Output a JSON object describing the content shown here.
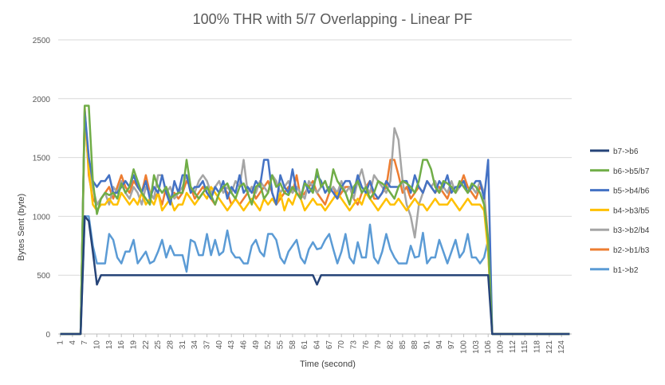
{
  "chart_data": {
    "type": "line",
    "title": "100% THR with 5/7 Overlapping - Linear PF",
    "xlabel": "Time (second)",
    "ylabel": "Bytes Sent (byte)",
    "ylim": [
      0,
      2500
    ],
    "yticks": [
      "0",
      "500",
      "1000",
      "1500",
      "2000",
      "2500"
    ],
    "x_tick_labels": [
      "1",
      "4",
      "7",
      "10",
      "13",
      "16",
      "19",
      "22",
      "25",
      "28",
      "31",
      "34",
      "37",
      "40",
      "43",
      "46",
      "49",
      "52",
      "55",
      "58",
      "61",
      "64",
      "67",
      "70",
      "73",
      "76",
      "79",
      "82",
      "85",
      "88",
      "91",
      "94",
      "97",
      "100",
      "103",
      "106",
      "109",
      "112",
      "115",
      "118",
      "121",
      "124"
    ],
    "x": [
      1,
      2,
      3,
      4,
      5,
      6,
      7,
      8,
      9,
      10,
      11,
      12,
      13,
      14,
      15,
      16,
      17,
      18,
      19,
      20,
      21,
      22,
      23,
      24,
      25,
      26,
      27,
      28,
      29,
      30,
      31,
      32,
      33,
      34,
      35,
      36,
      37,
      38,
      39,
      40,
      41,
      42,
      43,
      44,
      45,
      46,
      47,
      48,
      49,
      50,
      51,
      52,
      53,
      54,
      55,
      56,
      57,
      58,
      59,
      60,
      61,
      62,
      63,
      64,
      65,
      66,
      67,
      68,
      69,
      70,
      71,
      72,
      73,
      74,
      75,
      76,
      77,
      78,
      79,
      80,
      81,
      82,
      83,
      84,
      85,
      86,
      87,
      88,
      89,
      90,
      91,
      92,
      93,
      94,
      95,
      96,
      97,
      98,
      99,
      100,
      101,
      102,
      103,
      104,
      105,
      106,
      107,
      108,
      109,
      110,
      111,
      112,
      113,
      114,
      115,
      116,
      117,
      118,
      119,
      120,
      121,
      122,
      123,
      124,
      125,
      126
    ],
    "grid": true,
    "legend_position": "right",
    "series": [
      {
        "name": "b7->b6",
        "color": "#264478",
        "values": [
          0,
          0,
          0,
          0,
          0,
          0,
          1000,
          960,
          700,
          420,
          500,
          500,
          500,
          500,
          500,
          500,
          500,
          500,
          500,
          500,
          500,
          500,
          500,
          500,
          500,
          500,
          500,
          500,
          500,
          500,
          500,
          500,
          500,
          500,
          500,
          500,
          500,
          500,
          500,
          500,
          500,
          500,
          500,
          500,
          500,
          500,
          500,
          500,
          500,
          500,
          500,
          500,
          500,
          500,
          500,
          500,
          500,
          500,
          500,
          500,
          500,
          500,
          500,
          420,
          500,
          500,
          500,
          500,
          500,
          500,
          500,
          500,
          500,
          500,
          500,
          500,
          500,
          500,
          500,
          500,
          500,
          500,
          500,
          500,
          500,
          500,
          500,
          500,
          500,
          500,
          500,
          500,
          500,
          500,
          500,
          500,
          500,
          500,
          500,
          500,
          500,
          500,
          500,
          500,
          500,
          500,
          0,
          0,
          0,
          0,
          0,
          0,
          0,
          0,
          0,
          0,
          0,
          0,
          0,
          0,
          0,
          0,
          0,
          0,
          0,
          0
        ]
      },
      {
        "name": "b6->b5/b7",
        "color": "#70ad47",
        "values": [
          0,
          0,
          0,
          0,
          0,
          0,
          1940,
          1940,
          1300,
          1020,
          1150,
          1200,
          1180,
          1200,
          1150,
          1280,
          1200,
          1250,
          1400,
          1300,
          1200,
          1150,
          1100,
          1350,
          1250,
          1200,
          1250,
          1150,
          1180,
          1200,
          1200,
          1480,
          1250,
          1200,
          1150,
          1200,
          1250,
          1180,
          1100,
          1200,
          1250,
          1280,
          1200,
          1150,
          1250,
          1280,
          1200,
          1100,
          1250,
          1280,
          1150,
          1200,
          1350,
          1250,
          1280,
          1200,
          1180,
          1250,
          1200,
          1150,
          1280,
          1250,
          1200,
          1400,
          1250,
          1300,
          1200,
          1400,
          1300,
          1250,
          1200,
          1100,
          1250,
          1300,
          1200,
          1250,
          1150,
          1200,
          1300,
          1280,
          1250,
          1200,
          1150,
          1250,
          1300,
          1280,
          1250,
          1200,
          1300,
          1480,
          1480,
          1400,
          1250,
          1200,
          1300,
          1280,
          1250,
          1200,
          1300,
          1250,
          1200,
          1280,
          1250,
          1200,
          1100,
          800,
          0,
          0,
          0,
          0,
          0,
          0,
          0,
          0,
          0,
          0,
          0,
          0,
          0,
          0,
          0,
          0,
          0,
          0,
          0,
          0
        ]
      },
      {
        "name": "b5->b4/b6",
        "color": "#4472c4",
        "values": [
          0,
          0,
          0,
          0,
          0,
          0,
          1900,
          1500,
          1300,
          1250,
          1300,
          1300,
          1350,
          1200,
          1200,
          1250,
          1300,
          1250,
          1350,
          1250,
          1200,
          1300,
          1150,
          1250,
          1200,
          1350,
          1200,
          1100,
          1300,
          1200,
          1350,
          1350,
          1200,
          1250,
          1250,
          1300,
          1200,
          1150,
          1250,
          1200,
          1300,
          1150,
          1250,
          1200,
          1350,
          1200,
          1250,
          1200,
          1300,
          1250,
          1480,
          1480,
          1200,
          1100,
          1350,
          1250,
          1200,
          1400,
          1200,
          1150,
          1300,
          1200,
          1250,
          1350,
          1300,
          1200,
          1250,
          1200,
          1150,
          1250,
          1300,
          1300,
          1200,
          1350,
          1250,
          1200,
          1300,
          1200,
          1150,
          1200,
          1300,
          1250,
          1250,
          1250,
          1300,
          1300,
          1200,
          1350,
          1250,
          1200,
          1300,
          1250,
          1200,
          1300,
          1250,
          1350,
          1200,
          1250,
          1250,
          1300,
          1200,
          1250,
          1300,
          1300,
          1150,
          1480,
          0,
          0,
          0,
          0,
          0,
          0,
          0,
          0,
          0,
          0,
          0,
          0,
          0,
          0,
          0,
          0,
          0,
          0,
          0,
          0
        ]
      },
      {
        "name": "b4->b3/b5",
        "color": "#ffc000",
        "values": [
          0,
          0,
          0,
          0,
          0,
          0,
          1850,
          1400,
          1100,
          1050,
          1100,
          1100,
          1150,
          1100,
          1100,
          1200,
          1150,
          1100,
          1150,
          1100,
          1200,
          1100,
          1150,
          1100,
          1200,
          1050,
          1100,
          1150,
          1050,
          1100,
          1100,
          1200,
          1150,
          1100,
          1150,
          1200,
          1150,
          1250,
          1200,
          1150,
          1100,
          1050,
          1100,
          1150,
          1100,
          1050,
          1100,
          1150,
          1100,
          1050,
          1150,
          1100,
          1150,
          1100,
          1200,
          1050,
          1150,
          1100,
          1200,
          1150,
          1050,
          1100,
          1150,
          1100,
          1100,
          1050,
          1100,
          1150,
          1200,
          1150,
          1100,
          1050,
          1100,
          1150,
          1100,
          1200,
          1150,
          1100,
          1050,
          1100,
          1150,
          1100,
          1100,
          1150,
          1100,
          1050,
          1100,
          1150,
          1100,
          1100,
          1050,
          1100,
          1150,
          1100,
          1100,
          1100,
          1150,
          1100,
          1050,
          1100,
          1150,
          1100,
          1100,
          1100,
          1050,
          700,
          0,
          0,
          0,
          0,
          0,
          0,
          0,
          0,
          0,
          0,
          0,
          0,
          0,
          0,
          0,
          0,
          0,
          0,
          0,
          0
        ]
      },
      {
        "name": "b3->b2/b4",
        "color": "#a5a5a5",
        "values": [
          0,
          0,
          0,
          0,
          0,
          0,
          1850,
          1500,
          1250,
          1100,
          1150,
          1200,
          1100,
          1250,
          1200,
          1300,
          1200,
          1150,
          1250,
          1200,
          1100,
          1250,
          1200,
          1150,
          1350,
          1350,
          1200,
          1250,
          1150,
          1200,
          1250,
          1350,
          1250,
          1200,
          1300,
          1350,
          1300,
          1200,
          1250,
          1300,
          1200,
          1250,
          1200,
          1300,
          1250,
          1480,
          1200,
          1250,
          1200,
          1300,
          1250,
          1200,
          1350,
          1300,
          1200,
          1250,
          1300,
          1200,
          1250,
          1200,
          1150,
          1300,
          1250,
          1200,
          1250,
          1300,
          1200,
          1250,
          1200,
          1300,
          1200,
          1250,
          1150,
          1300,
          1400,
          1250,
          1200,
          1350,
          1300,
          1250,
          1200,
          1300,
          1750,
          1650,
          1300,
          1100,
          1000,
          820,
          1100,
          1200,
          1300,
          1250,
          1300,
          1200,
          1250,
          1200,
          1300,
          1200,
          1250,
          1300,
          1200,
          1250,
          1200,
          1300,
          1200,
          700,
          0,
          0,
          0,
          0,
          0,
          0,
          0,
          0,
          0,
          0,
          0,
          0,
          0,
          0,
          0,
          0,
          0,
          0,
          0,
          0
        ]
      },
      {
        "name": "b2->b1/b3",
        "color": "#ed7d31",
        "values": [
          0,
          0,
          0,
          0,
          0,
          0,
          1930,
          1350,
          1150,
          1100,
          1150,
          1200,
          1250,
          1150,
          1250,
          1350,
          1250,
          1200,
          1300,
          1250,
          1200,
          1350,
          1200,
          1150,
          1200,
          1100,
          1250,
          1150,
          1200,
          1150,
          1200,
          1300,
          1250,
          1150,
          1200,
          1250,
          1200,
          1150,
          1100,
          1200,
          1250,
          1200,
          1100,
          1150,
          1100,
          1150,
          1200,
          1250,
          1150,
          1200,
          1250,
          1300,
          1200,
          1100,
          1150,
          1200,
          1250,
          1200,
          1350,
          1150,
          1200,
          1250,
          1300,
          1200,
          1150,
          1100,
          1200,
          1250,
          1150,
          1200,
          1250,
          1250,
          1150,
          1100,
          1200,
          1250,
          1300,
          1150,
          1150,
          1200,
          1250,
          1480,
          1480,
          1350,
          1200,
          1250,
          1150,
          1200,
          1250,
          1200,
          1300,
          1250,
          1200,
          1250,
          1200,
          1150,
          1250,
          1200,
          1250,
          1350,
          1250,
          1200,
          1150,
          1250,
          1200,
          800,
          0,
          0,
          0,
          0,
          0,
          0,
          0,
          0,
          0,
          0,
          0,
          0,
          0,
          0,
          0,
          0,
          0,
          0,
          0,
          0
        ]
      },
      {
        "name": "b1->b2",
        "color": "#5b9bd5",
        "values": [
          0,
          0,
          0,
          0,
          0,
          0,
          1000,
          1000,
          750,
          600,
          600,
          600,
          850,
          800,
          650,
          600,
          700,
          700,
          800,
          600,
          650,
          700,
          600,
          620,
          700,
          800,
          650,
          750,
          670,
          670,
          670,
          530,
          800,
          780,
          670,
          670,
          850,
          670,
          800,
          670,
          700,
          880,
          700,
          650,
          650,
          600,
          600,
          750,
          800,
          700,
          660,
          850,
          850,
          800,
          650,
          600,
          700,
          750,
          800,
          650,
          600,
          720,
          780,
          720,
          730,
          800,
          850,
          720,
          600,
          700,
          850,
          650,
          600,
          780,
          650,
          650,
          930,
          650,
          600,
          700,
          850,
          720,
          650,
          600,
          600,
          600,
          750,
          650,
          660,
          860,
          600,
          650,
          650,
          800,
          700,
          600,
          700,
          800,
          650,
          700,
          850,
          650,
          650,
          600,
          650,
          800,
          0,
          0,
          0,
          0,
          0,
          0,
          0,
          0,
          0,
          0,
          0,
          0,
          0,
          0,
          0,
          0,
          0,
          0,
          0,
          0
        ]
      }
    ]
  }
}
